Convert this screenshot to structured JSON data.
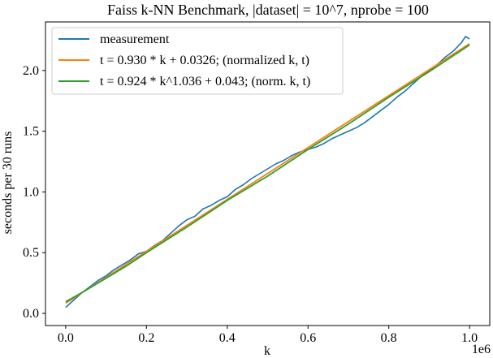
{
  "chart_data": {
    "type": "line",
    "title": "Faiss k-NN Benchmark, |dataset| = 10^7, nprobe = 100",
    "xlabel": "k",
    "ylabel": "seconds per 30 runs",
    "x_offset_label": "1e6",
    "xlim": [
      -50000,
      1050000
    ],
    "ylim": [
      -0.1,
      2.4
    ],
    "x_ticks": [
      {
        "value": 0,
        "label": "0.0"
      },
      {
        "value": 200000,
        "label": "0.2"
      },
      {
        "value": 400000,
        "label": "0.4"
      },
      {
        "value": 600000,
        "label": "0.6"
      },
      {
        "value": 800000,
        "label": "0.8"
      },
      {
        "value": 1000000,
        "label": "1.0"
      }
    ],
    "y_ticks": [
      {
        "value": 0.0,
        "label": "0.0"
      },
      {
        "value": 0.5,
        "label": "0.5"
      },
      {
        "value": 1.0,
        "label": "1.0"
      },
      {
        "value": 1.5,
        "label": "1.5"
      },
      {
        "value": 2.0,
        "label": "2.0"
      }
    ],
    "grid": false,
    "legend_position": "top-left",
    "series": [
      {
        "name": "measurement",
        "color": "#1f77b4",
        "x": [
          0,
          20000,
          40000,
          60000,
          80000,
          100000,
          120000,
          140000,
          160000,
          180000,
          200000,
          220000,
          240000,
          260000,
          280000,
          300000,
          320000,
          340000,
          360000,
          380000,
          400000,
          420000,
          440000,
          460000,
          480000,
          500000,
          520000,
          540000,
          560000,
          580000,
          600000,
          620000,
          640000,
          660000,
          680000,
          700000,
          720000,
          740000,
          760000,
          780000,
          800000,
          820000,
          840000,
          860000,
          880000,
          900000,
          920000,
          940000,
          960000,
          980000,
          990000,
          1000000
        ],
        "y": [
          0.05,
          0.11,
          0.17,
          0.22,
          0.27,
          0.31,
          0.36,
          0.4,
          0.44,
          0.49,
          0.51,
          0.56,
          0.6,
          0.66,
          0.72,
          0.77,
          0.8,
          0.86,
          0.89,
          0.93,
          0.96,
          1.02,
          1.06,
          1.11,
          1.15,
          1.19,
          1.23,
          1.26,
          1.3,
          1.33,
          1.35,
          1.37,
          1.4,
          1.44,
          1.47,
          1.5,
          1.53,
          1.57,
          1.62,
          1.67,
          1.72,
          1.78,
          1.83,
          1.89,
          1.95,
          2.0,
          2.05,
          2.11,
          2.16,
          2.23,
          2.28,
          2.26
        ]
      },
      {
        "name": "t = 0.930 * k + 0.0326; (normalized k, t)",
        "color": "#ff7f0e",
        "x": [
          0,
          1000000
        ],
        "y": [
          0.084,
          2.22
        ]
      },
      {
        "name": "t = 0.924 * k^1.036 + 0.043; (norm. k, t)",
        "color": "#2ca02c",
        "x": [
          0,
          50000,
          100000,
          150000,
          200000,
          300000,
          400000,
          500000,
          600000,
          700000,
          800000,
          900000,
          1000000
        ],
        "y": [
          0.096,
          0.19,
          0.29,
          0.39,
          0.5,
          0.71,
          0.93,
          1.13,
          1.35,
          1.56,
          1.78,
          1.99,
          2.21
        ]
      }
    ]
  }
}
